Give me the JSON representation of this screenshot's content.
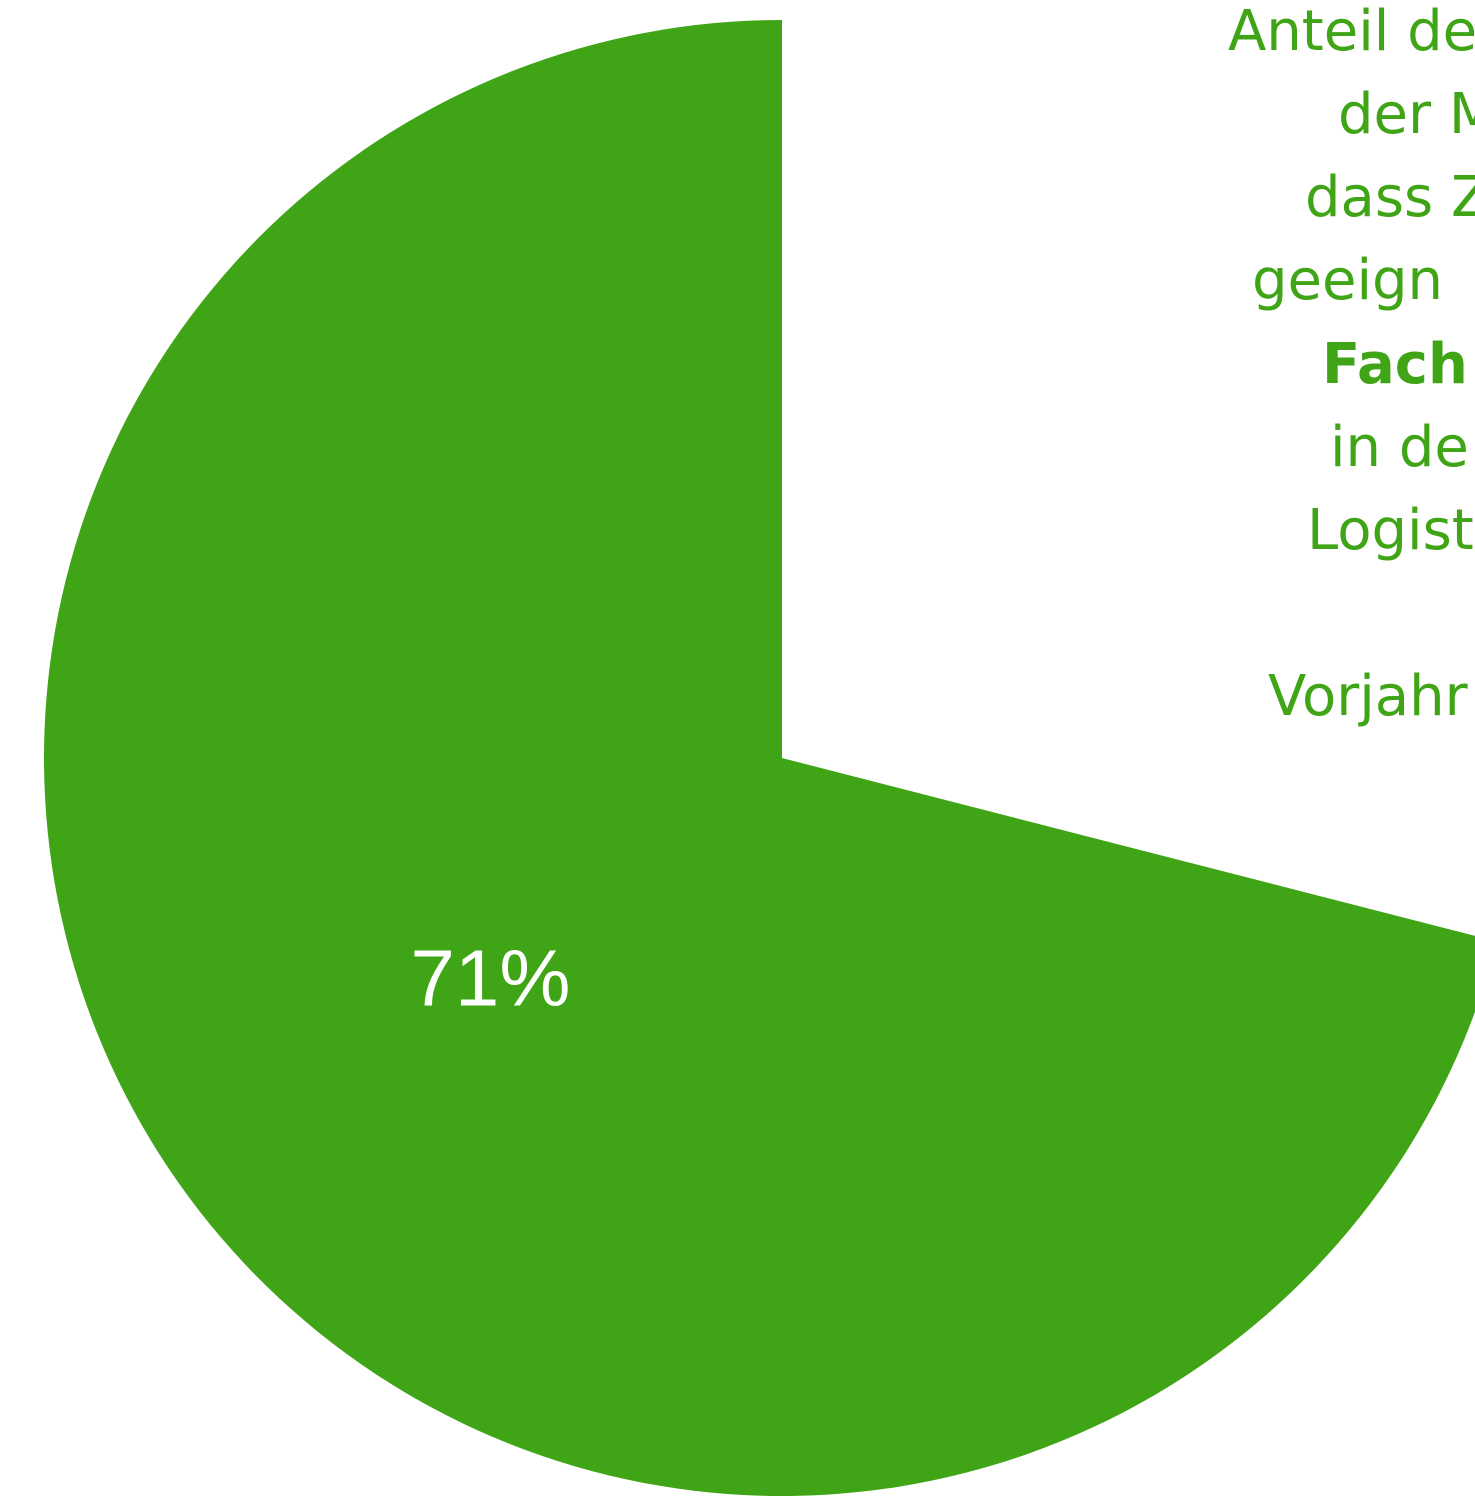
{
  "chart_data": {
    "type": "pie",
    "values": [
      29,
      71
    ],
    "value_labels": [
      null,
      "71%"
    ],
    "colors": [
      "#ffffff",
      "#3fa516"
    ],
    "annotation_lines": [
      {
        "text": "Anteil de"
      },
      {
        "text": "der M"
      },
      {
        "text": "dass Z"
      },
      {
        "text": "geeign"
      },
      {
        "text": "Fach",
        "bold": true
      },
      {
        "text": "in de"
      },
      {
        "text": "Logist"
      },
      {
        "text": "Vorjahr"
      }
    ]
  }
}
